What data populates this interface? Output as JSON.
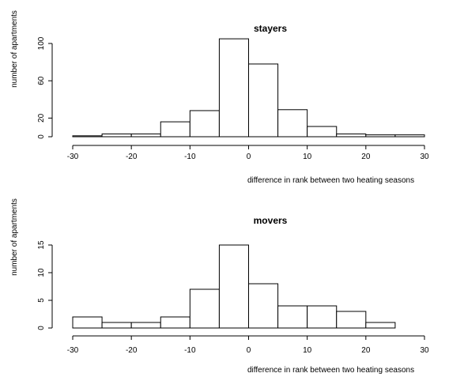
{
  "chart_data": [
    {
      "type": "bar",
      "title": "stayers",
      "xlabel": "difference in rank between two heating seasons",
      "ylabel": "number of apartments",
      "xlim": [
        -30,
        30
      ],
      "xticks": [
        -30,
        -20,
        -10,
        0,
        10,
        20,
        30
      ],
      "yticks": [
        0,
        20,
        60,
        100
      ],
      "ylim": [
        0,
        110
      ],
      "bin_width": 5,
      "bins": [
        {
          "from": -30,
          "to": -25,
          "count": 1
        },
        {
          "from": -25,
          "to": -20,
          "count": 3
        },
        {
          "from": -20,
          "to": -15,
          "count": 3
        },
        {
          "from": -15,
          "to": -10,
          "count": 16
        },
        {
          "from": -10,
          "to": -5,
          "count": 28
        },
        {
          "from": -5,
          "to": 0,
          "count": 105
        },
        {
          "from": 0,
          "to": 5,
          "count": 78
        },
        {
          "from": 5,
          "to": 10,
          "count": 29
        },
        {
          "from": 10,
          "to": 15,
          "count": 11
        },
        {
          "from": 15,
          "to": 20,
          "count": 3
        },
        {
          "from": 20,
          "to": 25,
          "count": 2
        },
        {
          "from": 25,
          "to": 30,
          "count": 2
        }
      ]
    },
    {
      "type": "bar",
      "title": "movers",
      "xlabel": "difference in rank between two heating seasons",
      "ylabel": "number of apartments",
      "xlim": [
        -30,
        30
      ],
      "xticks": [
        -30,
        -20,
        -10,
        0,
        10,
        20,
        30
      ],
      "yticks": [
        0,
        5,
        10,
        15
      ],
      "ylim": [
        0,
        15
      ],
      "bin_width": 5,
      "bins": [
        {
          "from": -30,
          "to": -25,
          "count": 2
        },
        {
          "from": -25,
          "to": -20,
          "count": 1
        },
        {
          "from": -20,
          "to": -15,
          "count": 1
        },
        {
          "from": -15,
          "to": -10,
          "count": 2
        },
        {
          "from": -10,
          "to": -5,
          "count": 7
        },
        {
          "from": -5,
          "to": 0,
          "count": 15
        },
        {
          "from": 0,
          "to": 5,
          "count": 8
        },
        {
          "from": 5,
          "to": 10,
          "count": 4
        },
        {
          "from": 10,
          "to": 15,
          "count": 4
        },
        {
          "from": 15,
          "to": 20,
          "count": 3
        },
        {
          "from": 20,
          "to": 25,
          "count": 1
        }
      ]
    }
  ]
}
